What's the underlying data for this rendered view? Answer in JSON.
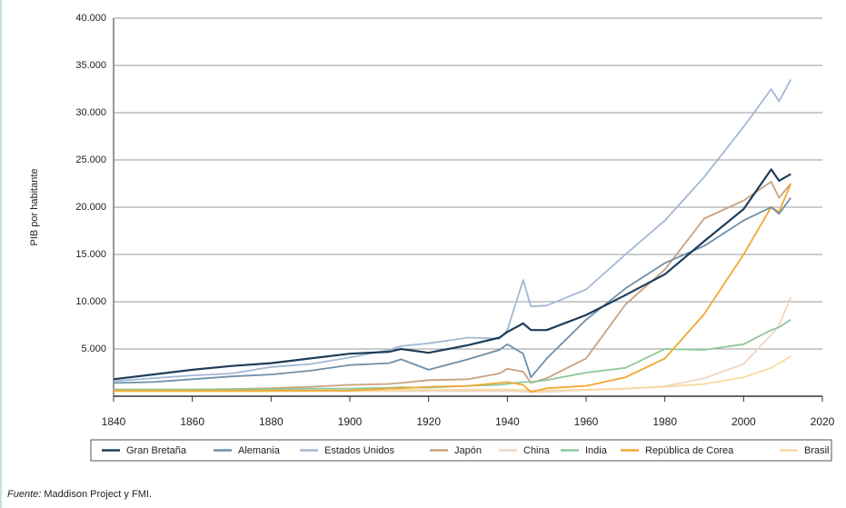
{
  "chart_data": {
    "type": "line",
    "ylabel": "PIB por habitante",
    "source_label": "Fuente:",
    "source": "Maddison Project y FMI.",
    "x": [
      1840,
      1850,
      1860,
      1870,
      1880,
      1890,
      1900,
      1910,
      1913,
      1920,
      1930,
      1938,
      1940,
      1944,
      1946,
      1950,
      1960,
      1970,
      1980,
      1990,
      2000,
      2007,
      2009,
      2012
    ],
    "xlim": [
      1840,
      2020
    ],
    "xticks": [
      1840,
      1860,
      1880,
      1900,
      1920,
      1940,
      1960,
      1980,
      2000,
      2020
    ],
    "ylim": [
      0,
      40000
    ],
    "yticks": [
      {
        "value": 5000,
        "label": "5.000"
      },
      {
        "value": 10000,
        "label": "10.000"
      },
      {
        "value": 15000,
        "label": "15.000"
      },
      {
        "value": 20000,
        "label": "20.000"
      },
      {
        "value": 25000,
        "label": "25.000"
      },
      {
        "value": 30000,
        "label": "30.000"
      },
      {
        "value": 35000,
        "label": "35.000"
      },
      {
        "value": 40000,
        "label": "40.000"
      }
    ],
    "grid": true,
    "legend": "bottom",
    "series": [
      {
        "name": "Gran Bretaña",
        "color": "#1f3d5a",
        "values": [
          1800,
          2300,
          2800,
          3200,
          3500,
          4000,
          4500,
          4700,
          5000,
          4600,
          5400,
          6200,
          6800,
          7700,
          7000,
          7000,
          8600,
          10700,
          12900,
          16400,
          19800,
          24000,
          22800,
          23500
        ]
      },
      {
        "name": "Alemania",
        "color": "#6f8fa8",
        "values": [
          1400,
          1500,
          1800,
          2100,
          2300,
          2700,
          3300,
          3500,
          3900,
          2800,
          3900,
          4900,
          5500,
          4500,
          2000,
          4000,
          8100,
          11400,
          14100,
          15900,
          18600,
          20000,
          19300,
          21000
        ]
      },
      {
        "name": "Estados Unidos",
        "color": "#a3b8d4",
        "values": [
          1600,
          1900,
          2200,
          2400,
          3100,
          3400,
          4100,
          4900,
          5300,
          5600,
          6200,
          6100,
          7000,
          12300,
          9500,
          9600,
          11300,
          15000,
          18600,
          23200,
          28500,
          32500,
          31200,
          33500
        ]
      },
      {
        "name": "Japón",
        "color": "#c9a27e",
        "values": [
          700,
          700,
          700,
          750,
          850,
          1000,
          1200,
          1300,
          1400,
          1700,
          1800,
          2400,
          2900,
          2600,
          1400,
          1900,
          4000,
          9700,
          13400,
          18800,
          20700,
          22700,
          21000,
          22500
        ]
      },
      {
        "name": "China",
        "color": "#f0d6c0",
        "values": [
          600,
          600,
          550,
          550,
          550,
          550,
          550,
          550,
          550,
          550,
          550,
          550,
          550,
          500,
          450,
          450,
          650,
          800,
          1050,
          1900,
          3400,
          6500,
          7500,
          10500
        ]
      },
      {
        "name": "India",
        "color": "#8fc79a",
        "values": [
          700,
          700,
          700,
          750,
          750,
          800,
          800,
          900,
          950,
          900,
          1100,
          1200,
          1300,
          1500,
          1500,
          1700,
          2500,
          3000,
          5000,
          4900,
          5500,
          7000,
          7300,
          8100
        ]
      },
      {
        "name": "República de Corea",
        "color": "#f0a830",
        "values": [
          600,
          600,
          600,
          600,
          600,
          600,
          600,
          800,
          850,
          1000,
          1100,
          1400,
          1500,
          1200,
          450,
          850,
          1100,
          2000,
          4000,
          8700,
          15000,
          20000,
          19500,
          22500
        ]
      },
      {
        "name": "Brasil",
        "color": "#f7d9a0",
        "values": [
          500,
          500,
          500,
          500,
          500,
          550,
          550,
          600,
          650,
          650,
          700,
          700,
          700,
          650,
          600,
          600,
          700,
          800,
          1000,
          1300,
          2000,
          3000,
          3500,
          4200
        ]
      }
    ]
  }
}
